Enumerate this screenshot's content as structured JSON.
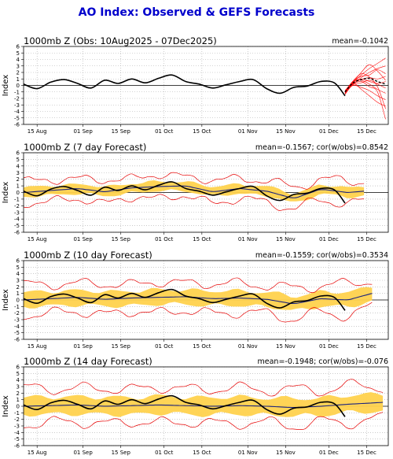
{
  "page": {
    "title": "AO Index: Observed & GEFS Forecasts"
  },
  "colors": {
    "title": "#0000cc",
    "observed": "#000000",
    "ensemble_members": "#ff0000",
    "ensemble_mean": "#000000",
    "forecast_mean": "#1a237e",
    "envelope_band": "#ffd24d",
    "extreme_lines": "#e60000"
  },
  "chart_data": [
    {
      "type": "line",
      "title": "1000mb Z (Obs: 10Aug2025 - 07Dec2025)",
      "stats": "mean=-0.1042",
      "ylabel": "Index",
      "ylim": [
        -6,
        6
      ],
      "yticks": [
        -6,
        -5,
        -4,
        -3,
        -2,
        -1,
        0,
        1,
        2,
        3,
        4,
        5,
        6
      ],
      "xlim": [
        "2025-08-10",
        "2025-12-23"
      ],
      "xtick_labels": [
        "15 Aug",
        "01 Sep",
        "15 Sep",
        "01 Oct",
        "15 Oct",
        "01 Nov",
        "15 Nov",
        "01 Dec",
        "15 Dec"
      ],
      "grid": true,
      "series": [
        {
          "role": "observed",
          "x": [
            "2025-08-10",
            "2025-08-15",
            "2025-08-20",
            "2025-08-25",
            "2025-08-30",
            "2025-09-04",
            "2025-09-09",
            "2025-09-14",
            "2025-09-19",
            "2025-09-24",
            "2025-09-29",
            "2025-10-04",
            "2025-10-09",
            "2025-10-14",
            "2025-10-19",
            "2025-10-24",
            "2025-10-29",
            "2025-11-03",
            "2025-11-08",
            "2025-11-13",
            "2025-11-18",
            "2025-11-23",
            "2025-11-28",
            "2025-12-03",
            "2025-12-07"
          ],
          "values": [
            0.2,
            -0.5,
            0.5,
            0.9,
            0.3,
            -0.4,
            0.8,
            0.3,
            1.0,
            0.4,
            1.1,
            1.6,
            0.6,
            0.2,
            -0.4,
            0.1,
            0.6,
            0.9,
            -0.5,
            -1.2,
            -0.3,
            -0.1,
            0.6,
            0.4,
            -1.6
          ]
        },
        {
          "role": "ensemble_mean",
          "x": [
            "2025-12-07",
            "2025-12-10",
            "2025-12-13",
            "2025-12-16",
            "2025-12-19",
            "2025-12-22"
          ],
          "values": [
            -1.0,
            0.4,
            0.9,
            1.1,
            0.6,
            0.2
          ]
        }
      ],
      "members": {
        "start": "2025-12-07",
        "x_offsets_days": [
          0,
          3,
          6,
          9,
          12,
          15
        ],
        "runs": [
          [
            -1.4,
            0.4,
            1.6,
            2.6,
            3.4,
            4.2
          ],
          [
            -1.3,
            0.2,
            1.2,
            2.0,
            2.6,
            3.0
          ],
          [
            -1.2,
            0.6,
            1.4,
            1.6,
            2.4,
            1.8
          ],
          [
            -1.1,
            0.3,
            0.9,
            1.2,
            1.0,
            1.4
          ],
          [
            -1.0,
            0.5,
            1.0,
            0.6,
            0.3,
            0.6
          ],
          [
            -1.0,
            0.1,
            0.4,
            0.8,
            0.2,
            -0.4
          ],
          [
            -0.9,
            0.6,
            0.8,
            0.2,
            -0.6,
            -1.2
          ],
          [
            -0.9,
            0.0,
            -0.3,
            -0.8,
            -1.6,
            -2.2
          ],
          [
            -0.8,
            0.7,
            1.8,
            1.3,
            -0.2,
            -3.6
          ],
          [
            -0.8,
            0.3,
            -0.6,
            -1.6,
            -2.6,
            -3.2
          ],
          [
            -1.2,
            0.5,
            2.0,
            3.2,
            2.2,
            0.8
          ],
          [
            -1.1,
            0.2,
            0.6,
            -0.2,
            -1.0,
            -5.2
          ]
        ]
      }
    },
    {
      "type": "line",
      "title": "1000mb Z (7 day Forecast)",
      "stats": "mean=-0.1567; cor(w/obs)=0.8542",
      "ylabel": "Index",
      "ylim": [
        -6,
        6
      ],
      "yticks": [
        -6,
        -5,
        -4,
        -3,
        -2,
        -1,
        0,
        1,
        2,
        3,
        4,
        5,
        6
      ],
      "xlim": [
        "2025-08-10",
        "2025-12-23"
      ],
      "xtick_labels": [
        "15 Aug",
        "01 Sep",
        "15 Sep",
        "01 Oct",
        "15 Oct",
        "01 Nov",
        "15 Nov",
        "01 Dec",
        "15 Dec"
      ],
      "grid": true,
      "lag_days": 7,
      "spread": {
        "inner": 0.7,
        "outer": 1.6
      },
      "series": [
        {
          "role": "observed",
          "x": [
            "2025-08-10",
            "2025-08-15",
            "2025-08-20",
            "2025-08-25",
            "2025-08-30",
            "2025-09-04",
            "2025-09-09",
            "2025-09-14",
            "2025-09-19",
            "2025-09-24",
            "2025-09-29",
            "2025-10-04",
            "2025-10-09",
            "2025-10-14",
            "2025-10-19",
            "2025-10-24",
            "2025-10-29",
            "2025-11-03",
            "2025-11-08",
            "2025-11-13",
            "2025-11-18",
            "2025-11-23",
            "2025-11-28",
            "2025-12-03",
            "2025-12-07"
          ],
          "values": [
            0.2,
            -0.5,
            0.5,
            0.9,
            0.3,
            -0.4,
            0.8,
            0.3,
            1.0,
            0.4,
            1.1,
            1.6,
            0.6,
            0.2,
            -0.4,
            0.1,
            0.6,
            0.9,
            -0.5,
            -1.2,
            -0.3,
            -0.1,
            0.6,
            0.4,
            -1.6
          ]
        },
        {
          "role": "forecast_mean",
          "x": [
            "2025-08-10",
            "2025-08-20",
            "2025-08-30",
            "2025-09-09",
            "2025-09-19",
            "2025-09-29",
            "2025-10-09",
            "2025-10-19",
            "2025-10-29",
            "2025-11-08",
            "2025-11-18",
            "2025-11-28",
            "2025-12-08",
            "2025-12-14"
          ],
          "values": [
            0.0,
            0.3,
            0.6,
            0.1,
            0.7,
            0.9,
            1.0,
            0.1,
            0.6,
            0.2,
            -0.9,
            0.5,
            0.0,
            0.2
          ]
        }
      ]
    },
    {
      "type": "line",
      "title": "1000mb Z (10 day Forecast)",
      "stats": "mean=-0.1559; cor(w/obs)=0.3534",
      "ylabel": "Index",
      "ylim": [
        -6,
        6
      ],
      "yticks": [
        -6,
        -5,
        -4,
        -3,
        -2,
        -1,
        0,
        1,
        2,
        3,
        4,
        5,
        6
      ],
      "xlim": [
        "2025-08-10",
        "2025-12-23"
      ],
      "xtick_labels": [
        "15 Aug",
        "01 Sep",
        "15 Sep",
        "01 Oct",
        "15 Oct",
        "01 Nov",
        "15 Nov",
        "01 Dec",
        "15 Dec"
      ],
      "grid": true,
      "lag_days": 10,
      "spread": {
        "inner": 1.1,
        "outer": 2.2
      },
      "series": [
        {
          "role": "observed",
          "x": [
            "2025-08-10",
            "2025-08-15",
            "2025-08-20",
            "2025-08-25",
            "2025-08-30",
            "2025-09-04",
            "2025-09-09",
            "2025-09-14",
            "2025-09-19",
            "2025-09-24",
            "2025-09-29",
            "2025-10-04",
            "2025-10-09",
            "2025-10-14",
            "2025-10-19",
            "2025-10-24",
            "2025-10-29",
            "2025-11-03",
            "2025-11-08",
            "2025-11-13",
            "2025-11-18",
            "2025-11-23",
            "2025-11-28",
            "2025-12-03",
            "2025-12-07"
          ],
          "values": [
            0.2,
            -0.5,
            0.5,
            0.9,
            0.3,
            -0.4,
            0.8,
            0.3,
            1.0,
            0.4,
            1.1,
            1.6,
            0.6,
            0.2,
            -0.4,
            0.1,
            0.6,
            0.9,
            -0.5,
            -1.2,
            -0.3,
            -0.1,
            0.6,
            0.4,
            -1.6
          ]
        },
        {
          "role": "forecast_mean",
          "x": [
            "2025-08-10",
            "2025-08-20",
            "2025-08-30",
            "2025-09-09",
            "2025-09-19",
            "2025-09-29",
            "2025-10-09",
            "2025-10-19",
            "2025-10-29",
            "2025-11-08",
            "2025-11-18",
            "2025-11-28",
            "2025-12-08",
            "2025-12-17"
          ],
          "values": [
            0.0,
            0.2,
            0.4,
            0.1,
            0.3,
            0.4,
            0.5,
            0.2,
            0.3,
            0.1,
            -0.6,
            0.2,
            0.0,
            1.0
          ]
        }
      ]
    },
    {
      "type": "line",
      "title": "1000mb Z (14 day Forecast)",
      "stats": "mean=-0.1948; cor(w/obs)=-0.076",
      "ylabel": "Index",
      "ylim": [
        -6,
        6
      ],
      "yticks": [
        -6,
        -5,
        -4,
        -3,
        -2,
        -1,
        0,
        1,
        2,
        3,
        4,
        5,
        6
      ],
      "xlim": [
        "2025-08-10",
        "2025-12-23"
      ],
      "xtick_labels": [
        "15 Aug",
        "01 Sep",
        "15 Sep",
        "01 Oct",
        "15 Oct",
        "01 Nov",
        "15 Nov",
        "01 Dec",
        "15 Dec"
      ],
      "grid": true,
      "lag_days": 14,
      "spread": {
        "inner": 1.3,
        "outer": 2.6
      },
      "series": [
        {
          "role": "observed",
          "x": [
            "2025-08-10",
            "2025-08-15",
            "2025-08-20",
            "2025-08-25",
            "2025-08-30",
            "2025-09-04",
            "2025-09-09",
            "2025-09-14",
            "2025-09-19",
            "2025-09-24",
            "2025-09-29",
            "2025-10-04",
            "2025-10-09",
            "2025-10-14",
            "2025-10-19",
            "2025-10-24",
            "2025-10-29",
            "2025-11-03",
            "2025-11-08",
            "2025-11-13",
            "2025-11-18",
            "2025-11-23",
            "2025-11-28",
            "2025-12-03",
            "2025-12-07"
          ],
          "values": [
            0.2,
            -0.5,
            0.5,
            0.9,
            0.3,
            -0.4,
            0.8,
            0.3,
            1.0,
            0.4,
            1.1,
            1.6,
            0.6,
            0.2,
            -0.4,
            0.1,
            0.6,
            0.9,
            -0.5,
            -1.2,
            -0.3,
            -0.1,
            0.6,
            0.4,
            -1.6
          ]
        },
        {
          "role": "forecast_mean",
          "x": [
            "2025-08-10",
            "2025-08-20",
            "2025-08-30",
            "2025-09-09",
            "2025-09-19",
            "2025-09-29",
            "2025-10-09",
            "2025-10-19",
            "2025-10-29",
            "2025-11-08",
            "2025-11-18",
            "2025-11-28",
            "2025-12-08",
            "2025-12-21"
          ],
          "values": [
            0.0,
            0.1,
            0.2,
            0.0,
            0.1,
            0.2,
            0.1,
            0.0,
            0.1,
            0.0,
            -0.2,
            0.0,
            0.3,
            0.6
          ]
        }
      ]
    }
  ]
}
